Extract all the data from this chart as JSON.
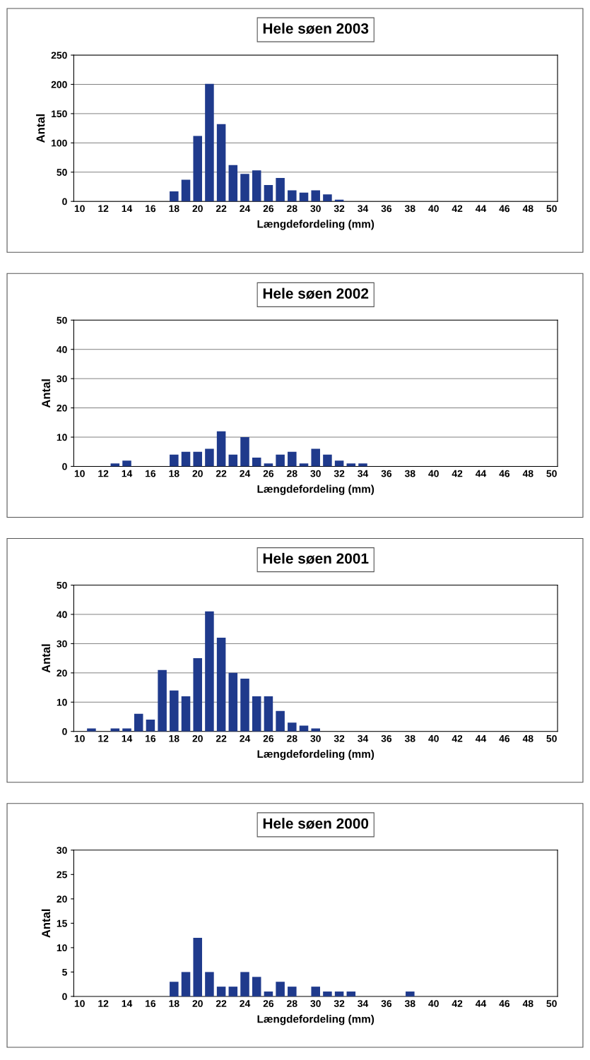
{
  "chart_data": [
    {
      "type": "bar",
      "title": "Hele søen 2003",
      "xlabel": "Længdefordeling (mm)",
      "ylabel": "Antal",
      "color": "#1f3a8c",
      "categories": [
        "10",
        null,
        "12",
        null,
        "14",
        null,
        "16",
        null,
        "18",
        null,
        "20",
        null,
        "22",
        null,
        "24",
        null,
        "26",
        null,
        "28",
        null,
        "30",
        null,
        "32",
        null,
        "34",
        null,
        "36",
        null,
        "38",
        null,
        "40",
        null,
        "42",
        null,
        "44",
        null,
        "46",
        null,
        "48",
        null,
        "50"
      ],
      "values": [
        0,
        0,
        0,
        0,
        0,
        0,
        0,
        0,
        17,
        37,
        112,
        201,
        132,
        62,
        47,
        53,
        28,
        40,
        19,
        15,
        19,
        12,
        3,
        0,
        0,
        0,
        0,
        0,
        0,
        0,
        0,
        0,
        0,
        0,
        0,
        0,
        0,
        0,
        0,
        0,
        0
      ],
      "ylim": [
        0,
        250
      ],
      "yticks": [
        0,
        50,
        100,
        150,
        200,
        250
      ],
      "grid": "y"
    },
    {
      "type": "bar",
      "title": "Hele søen 2002",
      "xlabel": "Længdefordeling (mm)",
      "ylabel": "Antal",
      "color": "#1f3a8c",
      "categories": [
        "10",
        null,
        "12",
        null,
        "14",
        null,
        "16",
        null,
        "18",
        null,
        "20",
        null,
        "22",
        null,
        "24",
        null,
        "26",
        null,
        "28",
        null,
        "30",
        null,
        "32",
        null,
        "34",
        null,
        "36",
        null,
        "38",
        null,
        "40",
        null,
        "42",
        null,
        "44",
        null,
        "46",
        null,
        "48",
        null,
        "50"
      ],
      "values": [
        0,
        0,
        0,
        1,
        2,
        0,
        0,
        0,
        4,
        5,
        5,
        6,
        12,
        4,
        10,
        3,
        1,
        4,
        5,
        1,
        6,
        4,
        2,
        1,
        1,
        0,
        0,
        0,
        0,
        0,
        0,
        0,
        0,
        0,
        0,
        0,
        0,
        0,
        0,
        0,
        0
      ],
      "ylim": [
        0,
        50
      ],
      "yticks": [
        0,
        10,
        20,
        30,
        40,
        50
      ],
      "grid": "y"
    },
    {
      "type": "bar",
      "title": "Hele søen 2001",
      "xlabel": "Længdefordeling (mm)",
      "ylabel": "Antal",
      "color": "#1f3a8c",
      "categories": [
        "10",
        null,
        "12",
        null,
        "14",
        null,
        "16",
        null,
        "18",
        null,
        "20",
        null,
        "22",
        null,
        "24",
        null,
        "26",
        null,
        "28",
        null,
        "30",
        null,
        "32",
        null,
        "34",
        null,
        "36",
        null,
        "38",
        null,
        "40",
        null,
        "42",
        null,
        "44",
        null,
        "46",
        null,
        "48",
        null,
        "50"
      ],
      "values": [
        0,
        1,
        0,
        1,
        1,
        6,
        4,
        21,
        14,
        12,
        25,
        41,
        32,
        20,
        18,
        12,
        12,
        7,
        3,
        2,
        1,
        0,
        0,
        0,
        0,
        0,
        0,
        0,
        0,
        0,
        0,
        0,
        0,
        0,
        0,
        0,
        0,
        0,
        0,
        0,
        0
      ],
      "ylim": [
        0,
        50
      ],
      "yticks": [
        0,
        10,
        20,
        30,
        40,
        50
      ],
      "grid": "y"
    },
    {
      "type": "bar",
      "title": "Hele søen 2000",
      "xlabel": "Længdefordeling (mm)",
      "ylabel": "Antal",
      "color": "#1f3a8c",
      "categories": [
        "10",
        null,
        "12",
        null,
        "14",
        null,
        "16",
        null,
        "18",
        null,
        "20",
        null,
        "22",
        null,
        "24",
        null,
        "26",
        null,
        "28",
        null,
        "30",
        null,
        "32",
        null,
        "34",
        null,
        "36",
        null,
        "38",
        null,
        "40",
        null,
        "42",
        null,
        "44",
        null,
        "46",
        null,
        "48",
        null,
        "50"
      ],
      "values": [
        0,
        0,
        0,
        0,
        0,
        0,
        0,
        0,
        3,
        5,
        12,
        5,
        2,
        2,
        5,
        4,
        1,
        3,
        2,
        0,
        2,
        1,
        1,
        1,
        0,
        0,
        0,
        0,
        1,
        0,
        0,
        0,
        0,
        0,
        0,
        0,
        0,
        0,
        0,
        0,
        0
      ],
      "ylim": [
        0,
        30
      ],
      "yticks": [
        0,
        5,
        10,
        15,
        20,
        25,
        30
      ],
      "grid": false
    }
  ]
}
